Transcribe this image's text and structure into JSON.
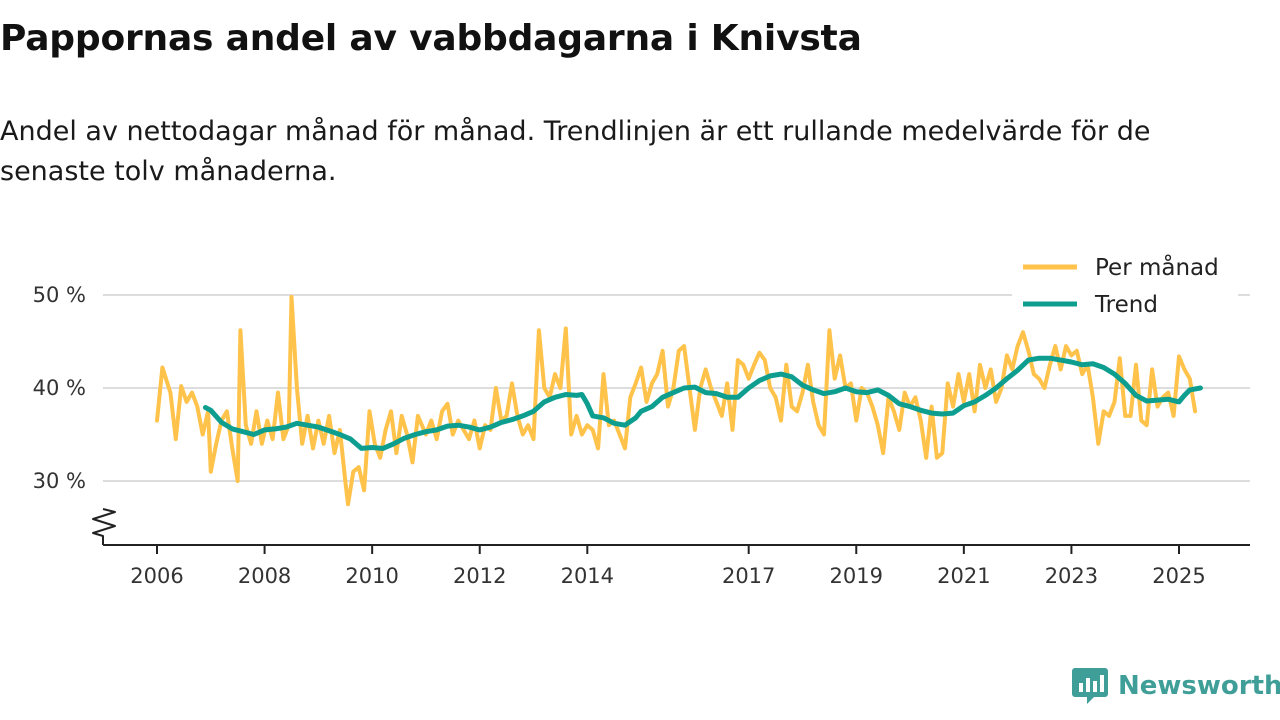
{
  "title": "Pappornas andel av vabbdagarna i Knivsta",
  "subtitle": "Andel av nettodagar månad för månad. Trendlinjen är ett rullande medelvärde för de senaste tolv månaderna.",
  "brand": {
    "name": "Newsworthy",
    "icon": "newsworthy-logo-icon"
  },
  "colors": {
    "monthly": "#ffc24a",
    "trend": "#0d9e8f",
    "grid": "#dddddd",
    "axis": "#222222",
    "brand": "#3f9f98"
  },
  "chart_data": {
    "type": "line",
    "title": "Pappornas andel av vabbdagarna i Knivsta",
    "xlabel": "",
    "ylabel": "",
    "x_unit": "year (decimal)",
    "y_unit": "%",
    "ylim": [
      23,
      50
    ],
    "xlim": [
      2006,
      2025.4
    ],
    "y_break": true,
    "y_ticks": [
      {
        "value": 30,
        "label": "30 %"
      },
      {
        "value": 40,
        "label": "40 %"
      },
      {
        "value": 50,
        "label": "50 %"
      }
    ],
    "x_ticks": [
      {
        "value": 2006,
        "label": "2006"
      },
      {
        "value": 2008,
        "label": "2008"
      },
      {
        "value": 2010,
        "label": "2010"
      },
      {
        "value": 2012,
        "label": "2012"
      },
      {
        "value": 2014,
        "label": "2014"
      },
      {
        "value": 2017,
        "label": "2017"
      },
      {
        "value": 2019,
        "label": "2019"
      },
      {
        "value": 2021,
        "label": "2021"
      },
      {
        "value": 2023,
        "label": "2023"
      },
      {
        "value": 2025,
        "label": "2025"
      }
    ],
    "grid": true,
    "legend_position": "top-right",
    "series": [
      {
        "name": "Per månad",
        "color": "#ffc24a",
        "points": [
          [
            2006.0,
            36.5
          ],
          [
            2006.1,
            42.2
          ],
          [
            2006.25,
            39.5
          ],
          [
            2006.35,
            34.5
          ],
          [
            2006.45,
            40.2
          ],
          [
            2006.55,
            38.5
          ],
          [
            2006.65,
            39.5
          ],
          [
            2006.75,
            38.0
          ],
          [
            2006.85,
            35.0
          ],
          [
            2006.95,
            37.5
          ],
          [
            2007.0,
            31.0
          ],
          [
            2007.1,
            34.0
          ],
          [
            2007.2,
            36.5
          ],
          [
            2007.3,
            37.5
          ],
          [
            2007.4,
            33.5
          ],
          [
            2007.5,
            30.0
          ],
          [
            2007.55,
            46.2
          ],
          [
            2007.65,
            36.0
          ],
          [
            2007.75,
            34.0
          ],
          [
            2007.85,
            37.5
          ],
          [
            2007.95,
            34.0
          ],
          [
            2008.05,
            36.5
          ],
          [
            2008.15,
            34.5
          ],
          [
            2008.25,
            39.5
          ],
          [
            2008.35,
            34.5
          ],
          [
            2008.45,
            36.0
          ],
          [
            2008.5,
            49.8
          ],
          [
            2008.6,
            40.0
          ],
          [
            2008.7,
            34.0
          ],
          [
            2008.8,
            37.0
          ],
          [
            2008.9,
            33.5
          ],
          [
            2009.0,
            36.5
          ],
          [
            2009.1,
            34.0
          ],
          [
            2009.2,
            37.0
          ],
          [
            2009.3,
            33.0
          ],
          [
            2009.4,
            35.5
          ],
          [
            2009.5,
            30.0
          ],
          [
            2009.55,
            27.5
          ],
          [
            2009.65,
            31.0
          ],
          [
            2009.75,
            31.5
          ],
          [
            2009.85,
            29.0
          ],
          [
            2009.95,
            37.5
          ],
          [
            2010.05,
            34.0
          ],
          [
            2010.15,
            32.5
          ],
          [
            2010.25,
            35.5
          ],
          [
            2010.35,
            37.5
          ],
          [
            2010.45,
            33.0
          ],
          [
            2010.55,
            37.0
          ],
          [
            2010.65,
            35.0
          ],
          [
            2010.75,
            32.0
          ],
          [
            2010.85,
            37.0
          ],
          [
            2011.0,
            35.0
          ],
          [
            2011.1,
            36.5
          ],
          [
            2011.2,
            34.5
          ],
          [
            2011.3,
            37.5
          ],
          [
            2011.4,
            38.3
          ],
          [
            2011.5,
            35.0
          ],
          [
            2011.6,
            36.5
          ],
          [
            2011.7,
            35.5
          ],
          [
            2011.8,
            34.5
          ],
          [
            2011.9,
            36.5
          ],
          [
            2012.0,
            33.5
          ],
          [
            2012.1,
            36.0
          ],
          [
            2012.2,
            35.5
          ],
          [
            2012.3,
            40.0
          ],
          [
            2012.4,
            36.5
          ],
          [
            2012.5,
            37.0
          ],
          [
            2012.6,
            40.5
          ],
          [
            2012.7,
            37.0
          ],
          [
            2012.8,
            35.0
          ],
          [
            2012.9,
            36.0
          ],
          [
            2013.0,
            34.5
          ],
          [
            2013.1,
            46.2
          ],
          [
            2013.2,
            40.0
          ],
          [
            2013.3,
            39.0
          ],
          [
            2013.4,
            41.5
          ],
          [
            2013.5,
            40.0
          ],
          [
            2013.6,
            46.4
          ],
          [
            2013.7,
            35.0
          ],
          [
            2013.8,
            37.0
          ],
          [
            2013.9,
            35.0
          ],
          [
            2014.0,
            36.0
          ],
          [
            2014.1,
            35.5
          ],
          [
            2014.2,
            33.5
          ],
          [
            2014.3,
            41.5
          ],
          [
            2014.4,
            36.0
          ],
          [
            2014.5,
            36.5
          ],
          [
            2014.6,
            35.0
          ],
          [
            2014.7,
            33.5
          ],
          [
            2014.8,
            39.0
          ],
          [
            2014.9,
            40.5
          ],
          [
            2015.0,
            42.2
          ],
          [
            2015.1,
            38.5
          ],
          [
            2015.2,
            40.5
          ],
          [
            2015.3,
            41.5
          ],
          [
            2015.4,
            44.0
          ],
          [
            2015.5,
            38.0
          ],
          [
            2015.6,
            40.0
          ],
          [
            2015.7,
            44.0
          ],
          [
            2015.8,
            44.5
          ],
          [
            2015.9,
            40.0
          ],
          [
            2016.0,
            35.5
          ],
          [
            2016.1,
            40.0
          ],
          [
            2016.2,
            42.0
          ],
          [
            2016.3,
            40.0
          ],
          [
            2016.4,
            38.5
          ],
          [
            2016.5,
            37.0
          ],
          [
            2016.6,
            40.5
          ],
          [
            2016.7,
            35.5
          ],
          [
            2016.8,
            43.0
          ],
          [
            2016.9,
            42.5
          ],
          [
            2017.0,
            41.0
          ],
          [
            2017.1,
            42.5
          ],
          [
            2017.2,
            43.8
          ],
          [
            2017.3,
            43.0
          ],
          [
            2017.4,
            40.0
          ],
          [
            2017.5,
            39.0
          ],
          [
            2017.6,
            36.5
          ],
          [
            2017.7,
            42.5
          ],
          [
            2017.8,
            38.0
          ],
          [
            2017.9,
            37.5
          ],
          [
            2018.0,
            39.5
          ],
          [
            2018.1,
            42.5
          ],
          [
            2018.2,
            38.5
          ],
          [
            2018.3,
            36.0
          ],
          [
            2018.4,
            35.0
          ],
          [
            2018.5,
            46.2
          ],
          [
            2018.6,
            41.0
          ],
          [
            2018.7,
            43.5
          ],
          [
            2018.8,
            40.0
          ],
          [
            2018.9,
            40.5
          ],
          [
            2019.0,
            36.5
          ],
          [
            2019.1,
            40.0
          ],
          [
            2019.2,
            39.5
          ],
          [
            2019.3,
            38.0
          ],
          [
            2019.4,
            36.0
          ],
          [
            2019.5,
            33.0
          ],
          [
            2019.6,
            39.0
          ],
          [
            2019.7,
            37.5
          ],
          [
            2019.8,
            35.5
          ],
          [
            2019.9,
            39.5
          ],
          [
            2020.0,
            38.0
          ],
          [
            2020.1,
            39.0
          ],
          [
            2020.2,
            36.5
          ],
          [
            2020.3,
            32.5
          ],
          [
            2020.4,
            38.0
          ],
          [
            2020.5,
            32.5
          ],
          [
            2020.6,
            33.0
          ],
          [
            2020.7,
            40.5
          ],
          [
            2020.8,
            38.0
          ],
          [
            2020.9,
            41.5
          ],
          [
            2021.0,
            38.5
          ],
          [
            2021.1,
            41.5
          ],
          [
            2021.2,
            37.5
          ],
          [
            2021.3,
            42.5
          ],
          [
            2021.4,
            40.0
          ],
          [
            2021.5,
            42.0
          ],
          [
            2021.6,
            38.5
          ],
          [
            2021.7,
            40.0
          ],
          [
            2021.8,
            43.5
          ],
          [
            2021.9,
            42.0
          ],
          [
            2022.0,
            44.5
          ],
          [
            2022.1,
            46.0
          ],
          [
            2022.2,
            44.0
          ],
          [
            2022.3,
            41.5
          ],
          [
            2022.4,
            41.0
          ],
          [
            2022.5,
            40.0
          ],
          [
            2022.6,
            42.5
          ],
          [
            2022.7,
            44.5
          ],
          [
            2022.8,
            42.0
          ],
          [
            2022.9,
            44.5
          ],
          [
            2023.0,
            43.5
          ],
          [
            2023.1,
            44.0
          ],
          [
            2023.2,
            41.5
          ],
          [
            2023.3,
            42.5
          ],
          [
            2023.4,
            39.0
          ],
          [
            2023.5,
            34.0
          ],
          [
            2023.6,
            37.5
          ],
          [
            2023.7,
            37.0
          ],
          [
            2023.8,
            38.5
          ],
          [
            2023.9,
            43.2
          ],
          [
            2024.0,
            37.0
          ],
          [
            2024.1,
            37.0
          ],
          [
            2024.2,
            42.5
          ],
          [
            2024.3,
            36.5
          ],
          [
            2024.4,
            36.0
          ],
          [
            2024.5,
            42.0
          ],
          [
            2024.6,
            38.0
          ],
          [
            2024.7,
            39.0
          ],
          [
            2024.8,
            39.5
          ],
          [
            2024.9,
            37.0
          ],
          [
            2025.0,
            43.4
          ],
          [
            2025.1,
            42.0
          ],
          [
            2025.2,
            41.0
          ],
          [
            2025.3,
            37.5
          ]
        ]
      },
      {
        "name": "Trend",
        "color": "#0d9e8f",
        "points": [
          [
            2006.9,
            37.9
          ],
          [
            2007.0,
            37.6
          ],
          [
            2007.2,
            36.3
          ],
          [
            2007.4,
            35.6
          ],
          [
            2007.6,
            35.3
          ],
          [
            2007.8,
            35.0
          ],
          [
            2008.0,
            35.5
          ],
          [
            2008.2,
            35.6
          ],
          [
            2008.4,
            35.8
          ],
          [
            2008.6,
            36.2
          ],
          [
            2008.8,
            36.0
          ],
          [
            2009.0,
            35.8
          ],
          [
            2009.2,
            35.4
          ],
          [
            2009.4,
            35.0
          ],
          [
            2009.6,
            34.5
          ],
          [
            2009.8,
            33.5
          ],
          [
            2010.0,
            33.6
          ],
          [
            2010.2,
            33.5
          ],
          [
            2010.4,
            34.0
          ],
          [
            2010.6,
            34.6
          ],
          [
            2010.8,
            35.0
          ],
          [
            2011.0,
            35.3
          ],
          [
            2011.2,
            35.5
          ],
          [
            2011.4,
            35.9
          ],
          [
            2011.6,
            36.0
          ],
          [
            2011.8,
            35.8
          ],
          [
            2012.0,
            35.5
          ],
          [
            2012.2,
            35.8
          ],
          [
            2012.4,
            36.3
          ],
          [
            2012.6,
            36.6
          ],
          [
            2012.8,
            37.0
          ],
          [
            2013.0,
            37.5
          ],
          [
            2013.2,
            38.5
          ],
          [
            2013.4,
            39.0
          ],
          [
            2013.6,
            39.3
          ],
          [
            2013.8,
            39.2
          ],
          [
            2013.9,
            39.3
          ],
          [
            2014.0,
            38.3
          ],
          [
            2014.1,
            37.0
          ],
          [
            2014.3,
            36.8
          ],
          [
            2014.5,
            36.2
          ],
          [
            2014.7,
            36.0
          ],
          [
            2014.9,
            36.8
          ],
          [
            2015.0,
            37.5
          ],
          [
            2015.2,
            38.0
          ],
          [
            2015.4,
            39.0
          ],
          [
            2015.6,
            39.5
          ],
          [
            2015.8,
            40.0
          ],
          [
            2016.0,
            40.1
          ],
          [
            2016.2,
            39.5
          ],
          [
            2016.4,
            39.4
          ],
          [
            2016.6,
            39.0
          ],
          [
            2016.8,
            39.0
          ],
          [
            2017.0,
            40.0
          ],
          [
            2017.2,
            40.8
          ],
          [
            2017.4,
            41.3
          ],
          [
            2017.6,
            41.5
          ],
          [
            2017.8,
            41.2
          ],
          [
            2018.0,
            40.3
          ],
          [
            2018.2,
            39.8
          ],
          [
            2018.4,
            39.4
          ],
          [
            2018.6,
            39.6
          ],
          [
            2018.8,
            40.0
          ],
          [
            2019.0,
            39.6
          ],
          [
            2019.2,
            39.5
          ],
          [
            2019.4,
            39.8
          ],
          [
            2019.6,
            39.2
          ],
          [
            2019.8,
            38.3
          ],
          [
            2020.0,
            38.0
          ],
          [
            2020.2,
            37.6
          ],
          [
            2020.4,
            37.3
          ],
          [
            2020.6,
            37.2
          ],
          [
            2020.8,
            37.3
          ],
          [
            2021.0,
            38.1
          ],
          [
            2021.2,
            38.5
          ],
          [
            2021.4,
            39.2
          ],
          [
            2021.6,
            40.0
          ],
          [
            2021.8,
            41.0
          ],
          [
            2022.0,
            41.9
          ],
          [
            2022.2,
            43.0
          ],
          [
            2022.4,
            43.2
          ],
          [
            2022.6,
            43.2
          ],
          [
            2022.8,
            43.0
          ],
          [
            2023.0,
            42.8
          ],
          [
            2023.2,
            42.5
          ],
          [
            2023.4,
            42.6
          ],
          [
            2023.6,
            42.2
          ],
          [
            2023.8,
            41.5
          ],
          [
            2024.0,
            40.5
          ],
          [
            2024.2,
            39.2
          ],
          [
            2024.4,
            38.6
          ],
          [
            2024.6,
            38.7
          ],
          [
            2024.8,
            38.8
          ],
          [
            2025.0,
            38.5
          ],
          [
            2025.1,
            39.2
          ],
          [
            2025.2,
            39.8
          ],
          [
            2025.4,
            40.0
          ]
        ]
      }
    ]
  }
}
